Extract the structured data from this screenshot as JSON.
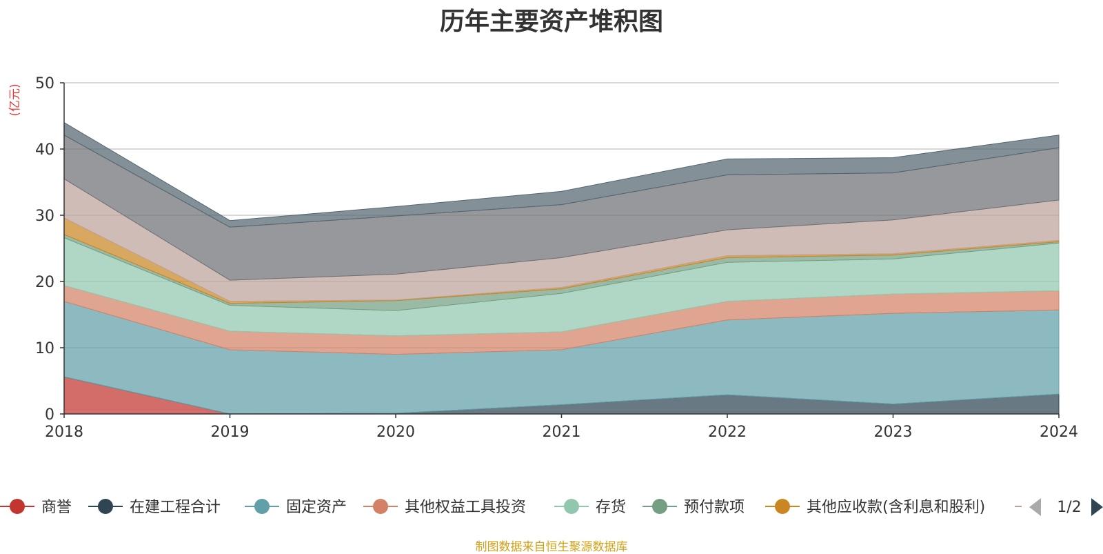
{
  "chart_data": {
    "type": "area",
    "stacked": true,
    "title": "历年主要资产堆积图",
    "ylabel": "(亿元)",
    "ylim": [
      0,
      50
    ],
    "yticks": [
      0,
      10,
      20,
      30,
      40,
      50
    ],
    "categories": [
      "2018",
      "2019",
      "2020",
      "2021",
      "2022",
      "2023",
      "2024"
    ],
    "series": [
      {
        "name": "商誉",
        "color": "#c23531",
        "values": [
          5.6,
          0,
          0,
          0,
          0,
          0,
          0
        ]
      },
      {
        "name": "在建工程合计",
        "color": "#2f4554",
        "values": [
          0,
          0,
          0.1,
          1.4,
          2.9,
          1.5,
          3.0
        ]
      },
      {
        "name": "固定资产",
        "color": "#61a0a8",
        "values": [
          11.4,
          9.7,
          8.9,
          8.3,
          11.3,
          13.7,
          12.7
        ]
      },
      {
        "name": "其他权益工具投资",
        "color": "#d48265",
        "values": [
          2.4,
          2.8,
          2.8,
          2.7,
          2.8,
          2.9,
          2.9
        ]
      },
      {
        "name": "存货",
        "color": "#91c7ae",
        "values": [
          7.2,
          3.9,
          3.8,
          5.8,
          5.9,
          5.3,
          7.2
        ]
      },
      {
        "name": "预付款项",
        "color": "#749f83",
        "values": [
          0.5,
          0.3,
          1.5,
          0.7,
          0.7,
          0.6,
          0.2
        ]
      },
      {
        "name": "其他应收款(含利息和股利)",
        "color": "#ca8622",
        "values": [
          2.5,
          0.3,
          0.1,
          0.2,
          0.3,
          0.2,
          0.2
        ]
      },
      {
        "name": "",
        "color": "#bda29a",
        "values": [
          5.9,
          3.2,
          3.9,
          4.5,
          3.9,
          5.1,
          6.1
        ]
      },
      {
        "name": "",
        "color": "#6e7074",
        "values": [
          6.6,
          8.0,
          8.8,
          8.0,
          8.3,
          7.1,
          7.9
        ]
      },
      {
        "name": "",
        "color": "#546570",
        "values": [
          1.9,
          1.0,
          1.4,
          2.0,
          2.4,
          2.3,
          1.9
        ]
      }
    ],
    "legend": {
      "visible_items": [
        "商誉",
        "在建工程合计",
        "固定资产",
        "其他权益工具投资",
        "存货",
        "预付款项",
        "其他应收款(含利息和股利)"
      ],
      "page": "1/2"
    },
    "source": "制图数据来自恒生聚源数据库"
  }
}
